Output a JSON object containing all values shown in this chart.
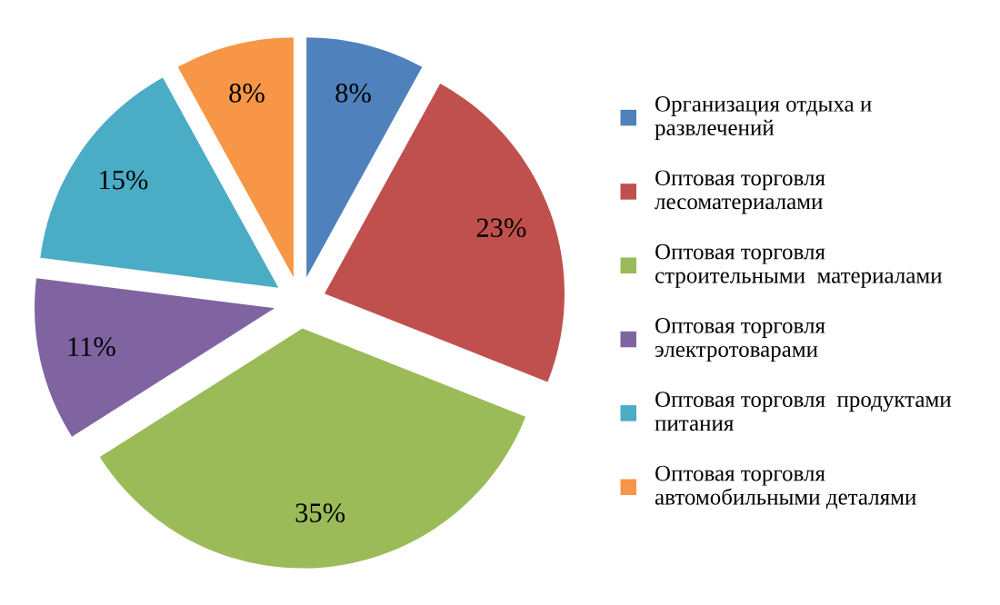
{
  "chart_data": {
    "type": "pie",
    "categories": [
      "Организация отдыха и\nразвлечений",
      "Оптовая торговля\nлесоматериалами",
      "Оптовая торговля\nстроительными  материалами",
      "Оптовая торговля\nэлектротоварами",
      "Оптовая торговля  продуктами\nпитания",
      "Оптовая торговля\nавтомобильными деталями"
    ],
    "values": [
      8,
      23,
      35,
      11,
      15,
      8
    ],
    "colors": [
      "#4f81bd",
      "#c0504d",
      "#9bbb59",
      "#8064a2",
      "#4bacc6",
      "#f79646"
    ],
    "value_labels": [
      "8%",
      "23%",
      "35%",
      "11%",
      "15%",
      "8%"
    ],
    "legend": "right"
  }
}
